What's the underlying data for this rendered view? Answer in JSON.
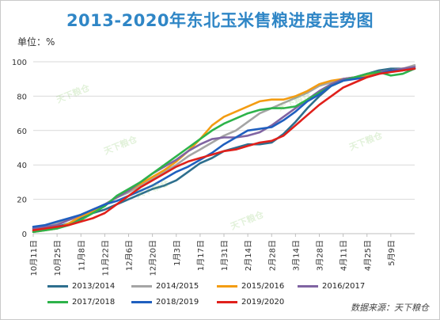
{
  "chart_data": {
    "type": "line",
    "title": "2013-2020年东北玉米售粮进度走势图",
    "unit_label": "单位：%",
    "source": "数据来源：天下粮仓",
    "watermark": "天下粮仓",
    "ylim": [
      0,
      100
    ],
    "yticks": [
      0,
      20,
      40,
      60,
      80,
      100
    ],
    "grid": true,
    "legend_position": "bottom",
    "categories": [
      "10月11日",
      "10月25日",
      "11月8日",
      "11月22日",
      "12月6日",
      "12月20日",
      "1月3日",
      "1月17日",
      "1月31日",
      "2月14日",
      "2月28日",
      "3月14日",
      "3月28日",
      "4月11日",
      "4月25日",
      "5月9日"
    ],
    "x": [
      0,
      0.5,
      1,
      1.5,
      2,
      2.5,
      3,
      3.5,
      4,
      4.5,
      5,
      5.5,
      6,
      6.5,
      7,
      7.5,
      8,
      8.5,
      9,
      9.5,
      10,
      10.5,
      11,
      11.5,
      12,
      12.5,
      13,
      13.5,
      14,
      14.5,
      15,
      15.5,
      16
    ],
    "series": [
      {
        "name": "2013/2014",
        "color": "#2e6f8e",
        "values": [
          2,
          2.5,
          4,
          6,
          9,
          12,
          14,
          17,
          20,
          23,
          26,
          28,
          31,
          36,
          41,
          44,
          48,
          50,
          52,
          52,
          53,
          58,
          65,
          73,
          80,
          86,
          89,
          91,
          93,
          95,
          96,
          96,
          97
        ]
      },
      {
        "name": "2014/2015",
        "color": "#a5a5a5",
        "values": [
          3,
          4,
          6,
          8,
          10,
          13,
          17,
          21,
          24,
          28,
          32,
          36,
          40,
          45,
          49,
          53,
          57,
          60,
          65,
          70,
          73,
          76,
          79,
          82,
          86,
          88,
          90,
          91,
          93,
          94,
          95,
          96,
          98
        ]
      },
      {
        "name": "2015/2016",
        "color": "#f39c12",
        "values": [
          1,
          2,
          3,
          6,
          10,
          13,
          17,
          21,
          25,
          29,
          33,
          37,
          42,
          48,
          55,
          63,
          68,
          71,
          74,
          77,
          78,
          78,
          80,
          83,
          87,
          89,
          90,
          91,
          92,
          94,
          95,
          96,
          96
        ]
      },
      {
        "name": "2016/2017",
        "color": "#8064a2",
        "values": [
          3,
          4,
          5,
          8,
          11,
          14,
          17,
          21,
          25,
          30,
          35,
          39,
          43,
          48,
          52,
          55,
          56,
          56,
          57,
          59,
          63,
          68,
          73,
          78,
          83,
          87,
          90,
          91,
          93,
          94,
          95,
          96,
          97
        ]
      },
      {
        "name": "2017/2018",
        "color": "#2db34a",
        "values": [
          1,
          2,
          3,
          5,
          8,
          12,
          16,
          22,
          26,
          30,
          35,
          40,
          45,
          50,
          55,
          60,
          64,
          67,
          70,
          72,
          73,
          73,
          74,
          78,
          82,
          86,
          89,
          91,
          93,
          94,
          92,
          93,
          96
        ]
      },
      {
        "name": "2018/2019",
        "color": "#1f5fbf",
        "values": [
          4,
          5,
          7,
          9,
          11,
          14,
          17,
          19,
          22,
          25,
          28,
          32,
          36,
          39,
          43,
          47,
          52,
          56,
          60,
          61,
          62,
          66,
          71,
          77,
          81,
          86,
          89,
          90,
          91,
          93,
          95,
          95,
          96
        ]
      },
      {
        "name": "2019/2020",
        "color": "#e0201b",
        "values": [
          2,
          3,
          4,
          5,
          7,
          9,
          12,
          17,
          22,
          27,
          31,
          35,
          39,
          42,
          44,
          46,
          48,
          49,
          51,
          53,
          54,
          57,
          63,
          69,
          75,
          80,
          85,
          88,
          91,
          93,
          94,
          95,
          96
        ]
      }
    ]
  }
}
